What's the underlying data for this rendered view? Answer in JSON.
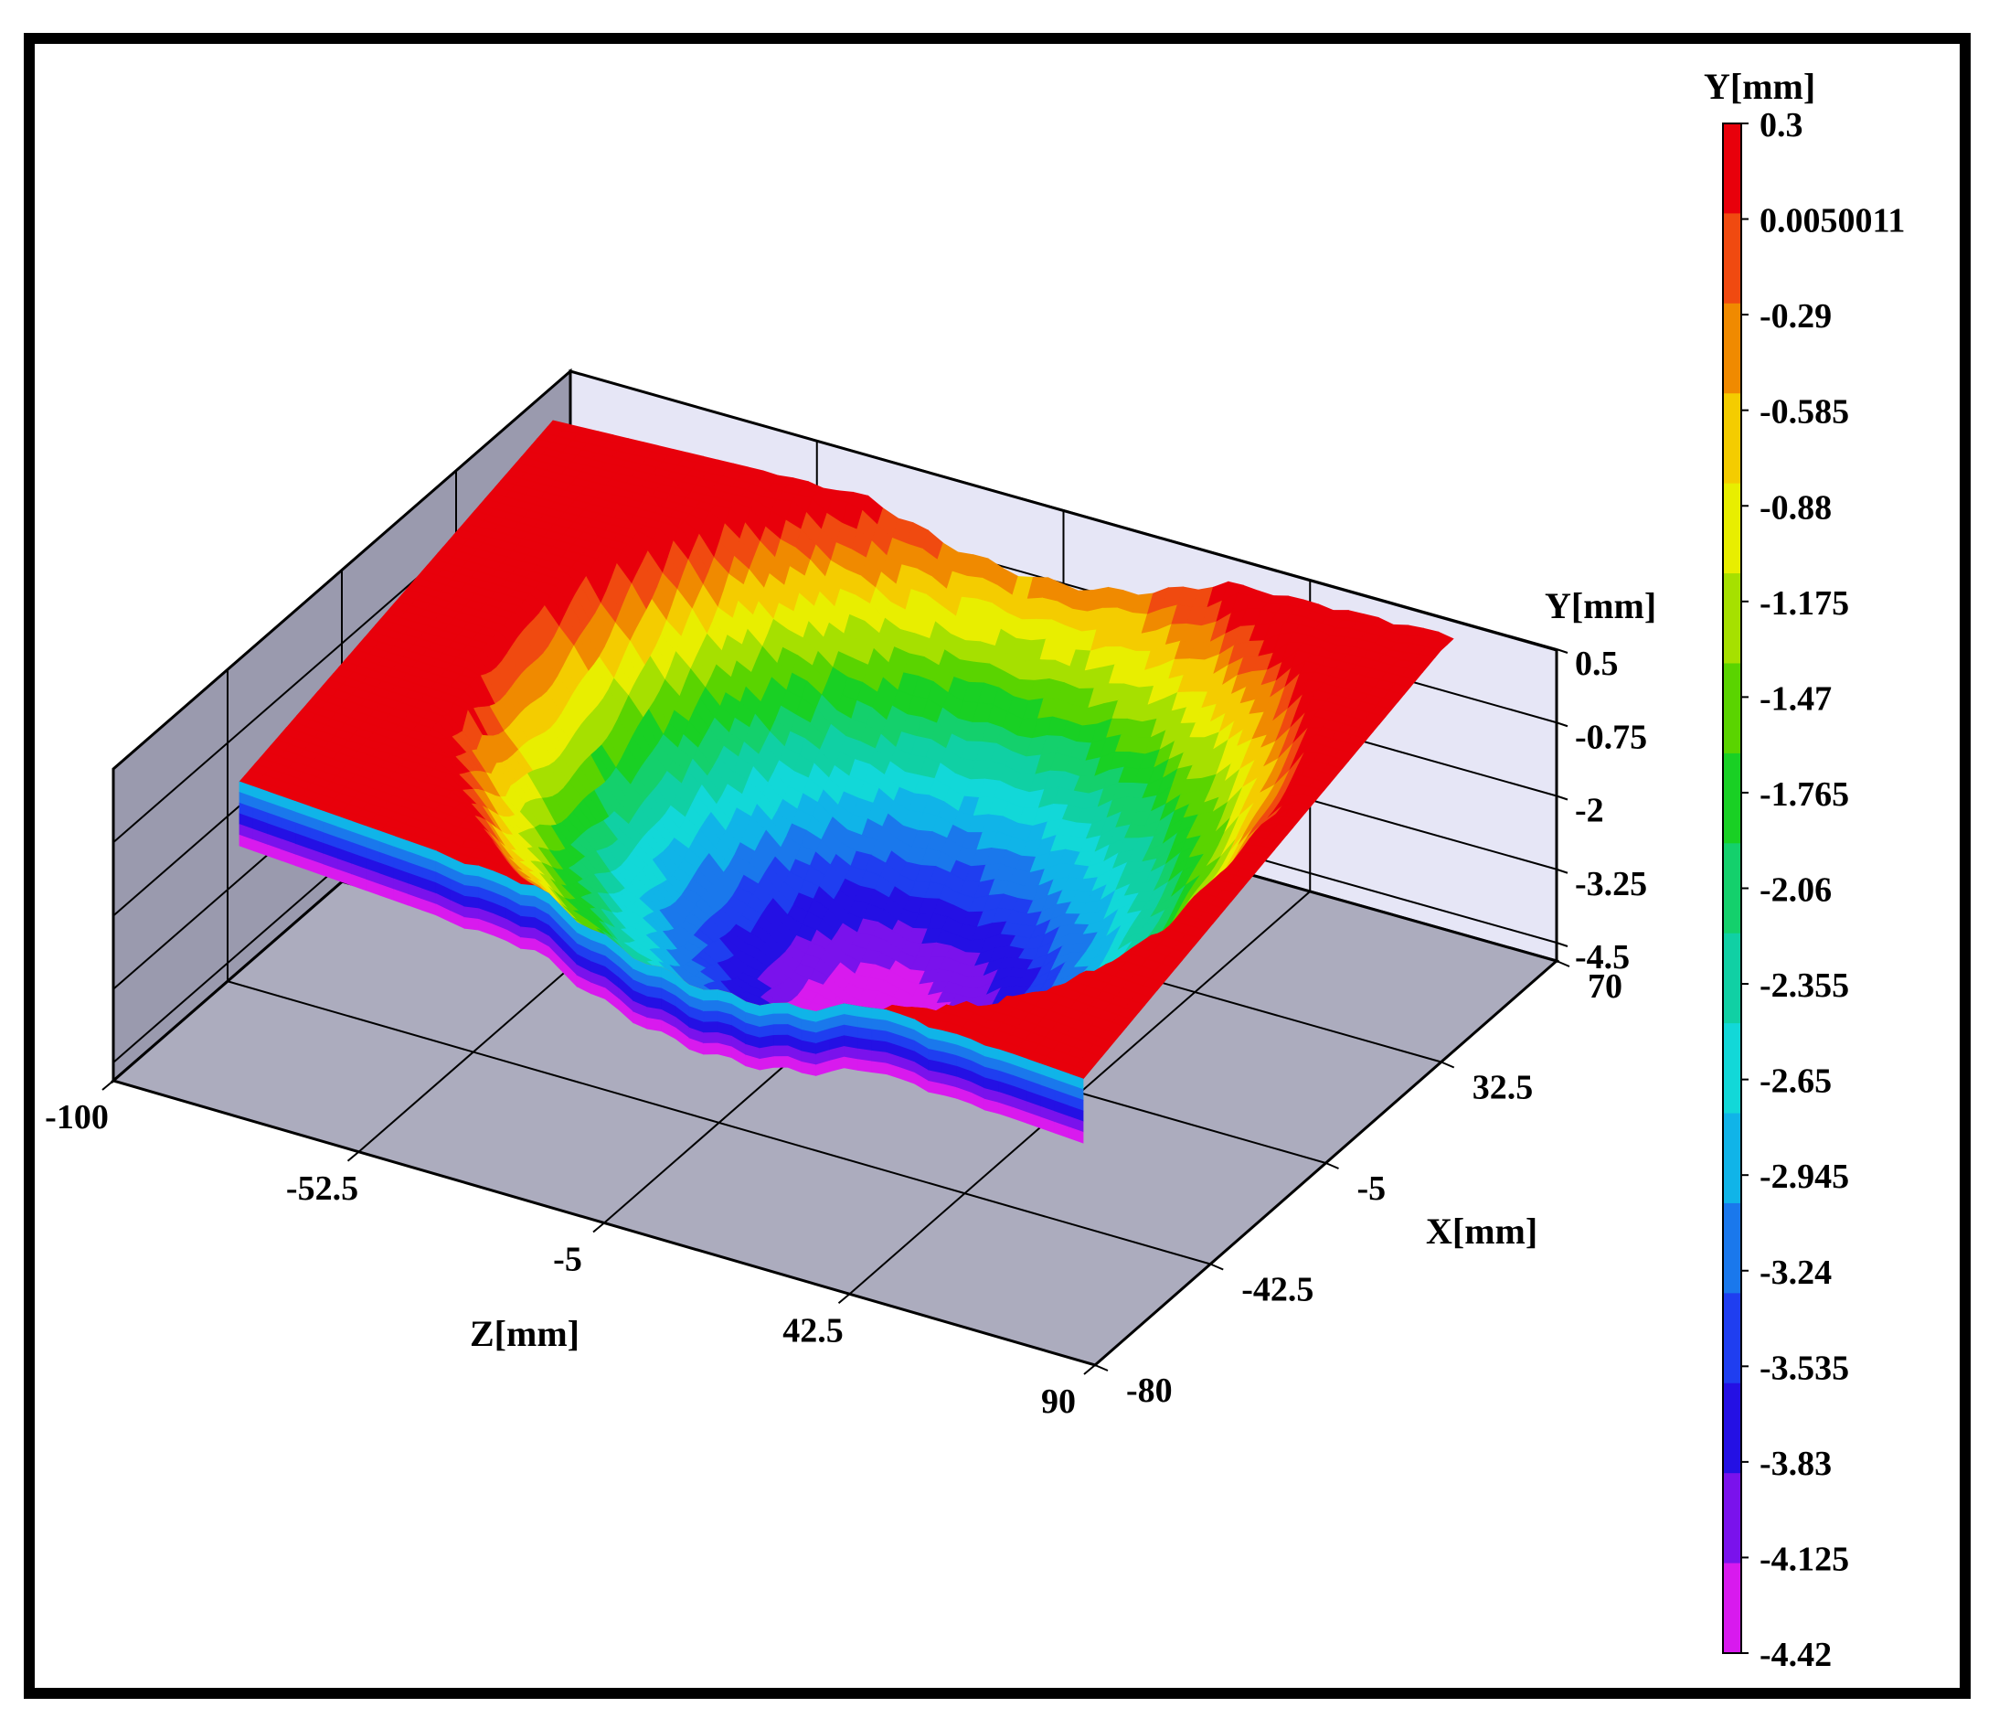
{
  "chart_data": {
    "type": "surface3d",
    "title": "",
    "axes": {
      "y": {
        "label": "Y[mm]",
        "ticks": [
          "0.5",
          "-0.75",
          "-2",
          "-3.25",
          "-4.5"
        ],
        "range": [
          -4.5,
          0.5
        ]
      },
      "z": {
        "label": "Z[mm]",
        "ticks": [
          "-100",
          "-52.5",
          "-5",
          "42.5",
          "90"
        ],
        "range": [
          -100,
          90
        ]
      },
      "x": {
        "label": "X[mm]",
        "ticks": [
          "70",
          "32.5",
          "-5",
          "-42.5",
          "-80"
        ],
        "range": [
          -80,
          70
        ]
      }
    },
    "colorbar": {
      "label": "Y[mm]",
      "levels": [
        "0.3",
        "0.0050011",
        "-0.29",
        "-0.585",
        "-0.88",
        "-1.175",
        "-1.47",
        "-1.765",
        "-2.06",
        "-2.355",
        "-2.65",
        "-2.945",
        "-3.24",
        "-3.535",
        "-3.83",
        "-4.125",
        "-4.42"
      ],
      "colors": [
        "#e8000b",
        "#f04a10",
        "#f08a00",
        "#f4cc00",
        "#e8ee00",
        "#a6e000",
        "#5ad400",
        "#19d024",
        "#14d06c",
        "#10d0a4",
        "#12d8d8",
        "#10b4e8",
        "#1a78ec",
        "#1f3ef0",
        "#2410e4",
        "#7a12ec",
        "#d81aee"
      ]
    },
    "surface": {
      "description_values": {
        "min_y": -4.42,
        "max_y": 0.3
      }
    },
    "grid": true
  }
}
